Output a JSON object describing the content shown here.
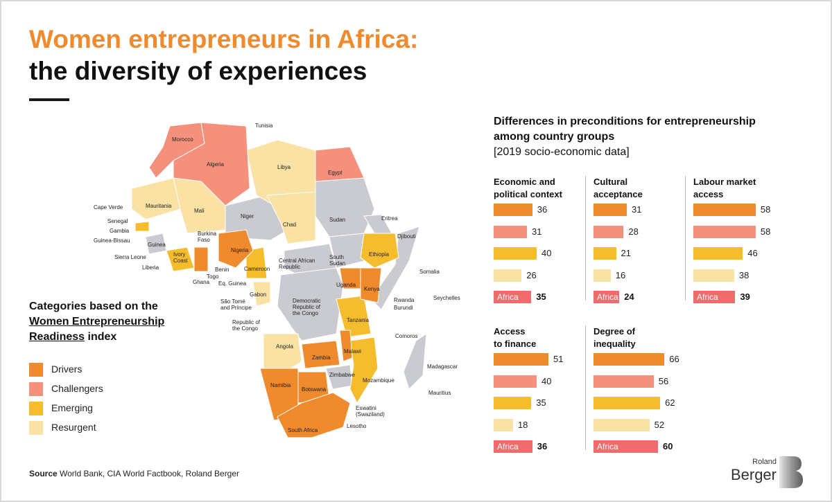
{
  "title_line1": "Women entrepreneurs in Africa:",
  "title_line2": "the diversity of experiences",
  "legend": {
    "title_line1": "Categories based on the",
    "title_line2": "Women Entrepreneurship",
    "title_line3_u": "Readiness",
    "title_line3_rest": " index",
    "items": [
      {
        "label": "Drivers",
        "color": "#ef8a2d"
      },
      {
        "label": "Challengers",
        "color": "#f4907c"
      },
      {
        "label": "Emerging",
        "color": "#f5bd2d"
      },
      {
        "label": "Resurgent",
        "color": "#f9e2a3"
      }
    ]
  },
  "source": {
    "label": "Source",
    "text": " World Bank, CIA World Factbook, Roland Berger"
  },
  "colors": {
    "Drivers": "#ef8a2d",
    "Challengers": "#f4907c",
    "Emerging": "#f5bd2d",
    "Resurgent": "#f9e2a3",
    "Africa": "#ee6c6c",
    "nodata": "#c9cbd0"
  },
  "map": {
    "labels": [
      "Tunisia",
      "Morocco",
      "Algeria",
      "Libya",
      "Egypt",
      "Cape Verde",
      "Mauritania",
      "Mali",
      "Niger",
      "Chad",
      "Sudan",
      "Eritrea",
      "Djibouti",
      "Senegal",
      "Gambia",
      "Guinea-Bissau",
      "Guinea",
      "Burkina Faso",
      "Nigeria",
      "Ethiopia",
      "Somalia",
      "Sierra Leone",
      "Liberia",
      "Ivory Coast",
      "Benin",
      "Togo",
      "Ghana",
      "Eq. Guinea",
      "Cameroon",
      "Central African Republic",
      "South Sudan",
      "Uganda",
      "Kenya",
      "Rwanda",
      "Burundi",
      "Seychelles",
      "São Tomé and Príncipe",
      "Gabon",
      "Democratic Republic of the Congo",
      "Republic of the Congo",
      "Tanzania",
      "Comoros",
      "Angola",
      "Zambia",
      "Malawi",
      "Madagascar",
      "Zimbabwe",
      "Mozambique",
      "Mauritius",
      "Namibia",
      "Botswana",
      "Eswatini (Swaziland)",
      "Lesotho",
      "South Africa"
    ]
  },
  "chart": {
    "title_line1": "Differences in preconditions for entrepreneurship",
    "title_line2": "among country groups",
    "subtitle": "[2019 socio-economic data]",
    "africa_label": "Africa"
  },
  "chart_data": [
    {
      "type": "bar",
      "title": "Economic and political context",
      "categories": [
        "Drivers",
        "Challengers",
        "Emerging",
        "Resurgent",
        "Africa"
      ],
      "values": [
        36,
        31,
        40,
        26,
        35
      ]
    },
    {
      "type": "bar",
      "title": "Cultural acceptance",
      "categories": [
        "Drivers",
        "Challengers",
        "Emerging",
        "Resurgent",
        "Africa"
      ],
      "values": [
        31,
        28,
        21,
        16,
        24
      ]
    },
    {
      "type": "bar",
      "title": "Labour market access",
      "categories": [
        "Drivers",
        "Challengers",
        "Emerging",
        "Resurgent",
        "Africa"
      ],
      "values": [
        58,
        58,
        46,
        38,
        39
      ]
    },
    {
      "type": "bar",
      "title": "Access to finance",
      "categories": [
        "Drivers",
        "Challengers",
        "Emerging",
        "Resurgent",
        "Africa"
      ],
      "values": [
        51,
        40,
        35,
        18,
        36
      ]
    },
    {
      "type": "bar",
      "title": "Degree of inequality",
      "categories": [
        "Drivers",
        "Challengers",
        "Emerging",
        "Resurgent",
        "Africa"
      ],
      "values": [
        66,
        56,
        62,
        52,
        60
      ]
    }
  ],
  "logo": {
    "line1": "Roland",
    "line2": "Berger"
  }
}
